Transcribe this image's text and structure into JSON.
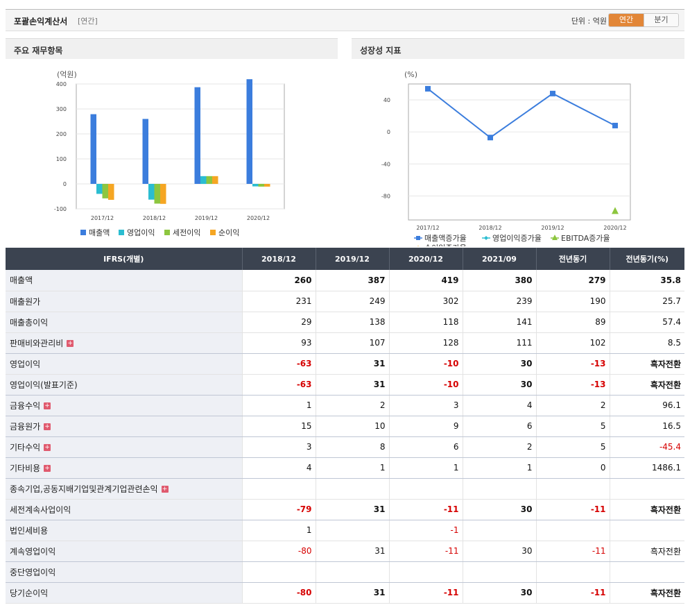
{
  "header": {
    "title": "포괄손익계산서",
    "period": "[연간]",
    "unit": "단위 : 억원",
    "toggle": [
      "연간",
      "분기"
    ]
  },
  "panels": {
    "left_title": "주요 재무항목",
    "right_title": "성장성 지표"
  },
  "chart_data": [
    {
      "type": "bar",
      "ylabel": "(억원)",
      "categories": [
        "2017/12",
        "2018/12",
        "2019/12",
        "2020/12"
      ],
      "yticks": [
        "400",
        "300",
        "200",
        "100",
        "0",
        "-100"
      ],
      "ylim": [
        -100,
        400
      ],
      "legend_position": "bottom",
      "grid": true,
      "series": [
        {
          "name": "매출액",
          "color": "#3b7ddd",
          "values": [
            279,
            260,
            387,
            419
          ]
        },
        {
          "name": "영업이익",
          "color": "#2bbdd1",
          "values": [
            -40,
            -63,
            31,
            -10
          ]
        },
        {
          "name": "세전이익",
          "color": "#8dc63f",
          "values": [
            -58,
            -79,
            31,
            -11
          ]
        },
        {
          "name": "순이익",
          "color": "#f5a623",
          "values": [
            -64,
            -80,
            31,
            -11
          ]
        }
      ]
    },
    {
      "type": "line",
      "ylabel": "(%)",
      "categories": [
        "2017/12",
        "2018/12",
        "2019/12",
        "2020/12"
      ],
      "yticks": [
        "40",
        "0",
        "-40",
        "-80"
      ],
      "ylim": [
        -110,
        60
      ],
      "legend_position": "bottom",
      "grid": true,
      "series": [
        {
          "name": "매출액증가율",
          "color": "#3b7ddd",
          "marker": "square",
          "values": [
            54,
            -7,
            48,
            8
          ]
        },
        {
          "name": "영업이익증가율",
          "color": "#2bbdd1",
          "marker": "diamond",
          "values": [
            null,
            null,
            null,
            null
          ]
        },
        {
          "name": "EBITDA증가율",
          "color": "#8dc63f",
          "marker": "triangle",
          "values": [
            null,
            null,
            null,
            -99
          ]
        },
        {
          "name": "순이익증가율",
          "color": "#f5a623",
          "marker": "diamond",
          "values": [
            null,
            null,
            null,
            null
          ]
        }
      ]
    }
  ],
  "table": {
    "headers": [
      "IFRS(개별)",
      "2018/12",
      "2019/12",
      "2020/12",
      "2021/09",
      "전년동기",
      "전년동기(%)"
    ],
    "rows": [
      {
        "label": "매출액",
        "values": [
          "260",
          "387",
          "419",
          "380",
          "279",
          "35.8"
        ],
        "bold": true,
        "expand": false
      },
      {
        "label": "매출원가",
        "values": [
          "231",
          "249",
          "302",
          "239",
          "190",
          "25.7"
        ],
        "bold": false,
        "expand": false
      },
      {
        "label": "매출총이익",
        "values": [
          "29",
          "138",
          "118",
          "141",
          "89",
          "57.4"
        ],
        "bold": false,
        "expand": false
      },
      {
        "label": "판매비와관리비",
        "values": [
          "93",
          "107",
          "128",
          "111",
          "102",
          "8.5"
        ],
        "bold": false,
        "expand": true
      },
      {
        "label": "영업이익",
        "values": [
          "-63",
          "31",
          "-10",
          "30",
          "-13",
          "흑자전환"
        ],
        "bold": true,
        "expand": false
      },
      {
        "label": "영업이익(발표기준)",
        "values": [
          "-63",
          "31",
          "-10",
          "30",
          "-13",
          "흑자전환"
        ],
        "bold": true,
        "expand": false
      },
      {
        "label": "금융수익",
        "values": [
          "1",
          "2",
          "3",
          "4",
          "2",
          "96.1"
        ],
        "bold": false,
        "expand": true
      },
      {
        "label": "금융원가",
        "values": [
          "15",
          "10",
          "9",
          "6",
          "5",
          "16.5"
        ],
        "bold": false,
        "expand": true
      },
      {
        "label": "기타수익",
        "values": [
          "3",
          "8",
          "6",
          "2",
          "5",
          "-45.4"
        ],
        "bold": false,
        "expand": true
      },
      {
        "label": "기타비용",
        "values": [
          "4",
          "1",
          "1",
          "1",
          "0",
          "1486.1"
        ],
        "bold": false,
        "expand": true
      },
      {
        "label": "종속기업,공동지배기업및관계기업관련손익",
        "values": [
          "",
          "",
          "",
          "",
          "",
          ""
        ],
        "bold": false,
        "expand": true
      },
      {
        "label": "세전계속사업이익",
        "values": [
          "-79",
          "31",
          "-11",
          "30",
          "-11",
          "흑자전환"
        ],
        "bold": true,
        "expand": false
      },
      {
        "label": "법인세비용",
        "values": [
          "1",
          "",
          "-1",
          "",
          "",
          ""
        ],
        "bold": false,
        "expand": false
      },
      {
        "label": "계속영업이익",
        "values": [
          "-80",
          "31",
          "-11",
          "30",
          "-11",
          "흑자전환"
        ],
        "bold": false,
        "expand": false
      },
      {
        "label": "중단영업이익",
        "values": [
          "",
          "",
          "",
          "",
          "",
          ""
        ],
        "bold": false,
        "expand": false
      },
      {
        "label": "당기순이익",
        "values": [
          "-80",
          "31",
          "-11",
          "30",
          "-11",
          "흑자전환"
        ],
        "bold": true,
        "expand": false
      }
    ]
  }
}
